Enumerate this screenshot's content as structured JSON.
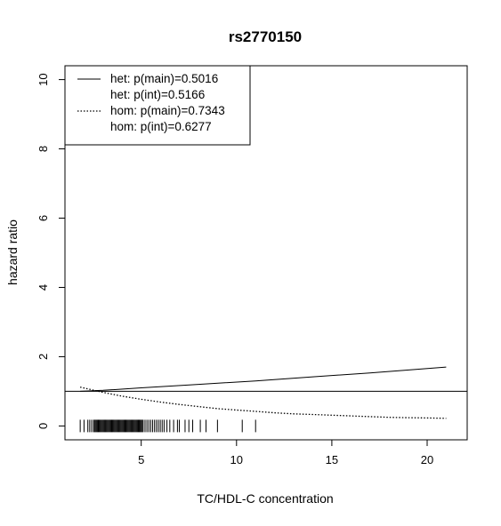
{
  "chart_data": {
    "type": "line",
    "title": "rs2770150",
    "xlabel": "TC/HDL-C concentration",
    "ylabel": "hazard ratio",
    "xlim": [
      1.0,
      22.1
    ],
    "ylim": [
      -0.4,
      10.4
    ],
    "x_ticks": [
      5,
      10,
      15,
      20
    ],
    "y_ticks": [
      0,
      2,
      4,
      6,
      8,
      10
    ],
    "reference_line_y": 1,
    "legend": {
      "position": "top-left",
      "entries": [
        {
          "text": "het: p(main)=0.5016",
          "line": "solid"
        },
        {
          "text": "het: p(int)=0.5166",
          "line": "none"
        },
        {
          "text": "hom: p(main)=0.7343",
          "line": "dotted"
        },
        {
          "text": "hom: p(int)=0.6277",
          "line": "none"
        }
      ]
    },
    "series": [
      {
        "line_style": "solid",
        "x": [
          1.8,
          3,
          5,
          8,
          11,
          14,
          17,
          21
        ],
        "y": [
          1.0,
          1.03,
          1.1,
          1.2,
          1.3,
          1.42,
          1.53,
          1.7
        ]
      },
      {
        "line_style": "dotted",
        "x": [
          1.8,
          3,
          4,
          5,
          6,
          7,
          8,
          9,
          10,
          11,
          12,
          13,
          14,
          15,
          16,
          17,
          18,
          19,
          20,
          21
        ],
        "y": [
          1.12,
          0.97,
          0.86,
          0.77,
          0.69,
          0.62,
          0.56,
          0.5,
          0.46,
          0.42,
          0.38,
          0.35,
          0.33,
          0.31,
          0.29,
          0.27,
          0.25,
          0.24,
          0.23,
          0.22
        ]
      }
    ],
    "rug": {
      "y": 0,
      "x": [
        1.8,
        2.0,
        2.2,
        2.3,
        2.4,
        2.5,
        2.55,
        2.6,
        2.65,
        2.7,
        2.75,
        2.8,
        2.85,
        2.9,
        2.95,
        3.0,
        3.05,
        3.1,
        3.15,
        3.2,
        3.25,
        3.3,
        3.35,
        3.4,
        3.45,
        3.5,
        3.55,
        3.6,
        3.65,
        3.7,
        3.75,
        3.8,
        3.85,
        3.9,
        3.95,
        4.0,
        4.05,
        4.1,
        4.15,
        4.2,
        4.25,
        4.3,
        4.35,
        4.4,
        4.45,
        4.5,
        4.55,
        4.6,
        4.65,
        4.7,
        4.75,
        4.8,
        4.85,
        4.9,
        4.95,
        5.0,
        5.05,
        5.1,
        5.2,
        5.3,
        5.4,
        5.5,
        5.6,
        5.7,
        5.8,
        5.9,
        6.0,
        6.1,
        6.2,
        6.35,
        6.5,
        6.7,
        6.9,
        7.0,
        7.3,
        7.5,
        7.7,
        8.1,
        8.4,
        9.0,
        10.3,
        11.0
      ]
    }
  }
}
